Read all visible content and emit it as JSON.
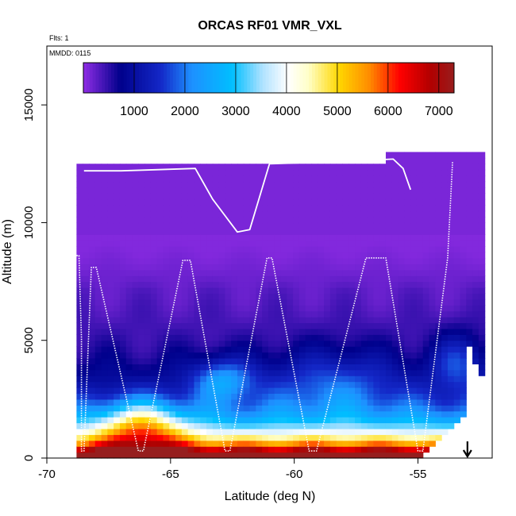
{
  "chart_data": {
    "type": "heatmap",
    "title": "ORCAS RF01 VMR_VXL",
    "flights_label": "Flts: 1",
    "date_label": "MMDD: 0115",
    "xlabel": "Latitude (deg N)",
    "ylabel": "Altitude (m)",
    "xlim": [
      -70,
      -52
    ],
    "ylim": [
      0,
      17500
    ],
    "x_ticks": [
      -70,
      -65,
      -60,
      -55
    ],
    "x_tick_labels": [
      "-70",
      "-65",
      "-60",
      "-55"
    ],
    "y_ticks": [
      0,
      5000,
      10000,
      15000
    ],
    "y_tick_labels": [
      "0",
      "5000",
      "10000",
      "15000"
    ],
    "colorbar": {
      "min": 0,
      "max": 7300,
      "ticks": [
        1000,
        2000,
        3000,
        4000,
        5000,
        6000,
        7000
      ],
      "tick_labels": [
        "1000",
        "2000",
        "3000",
        "4000",
        "5000",
        "6000",
        "7000"
      ],
      "colors": [
        "#8a2be2",
        "#00008b",
        "#1e90ff",
        "#00bfff",
        "#ffffff",
        "#ffffe0",
        "#ffd700",
        "#ffa500",
        "#ff0000",
        "#8b0000",
        "#a52a2a"
      ]
    },
    "grid": {
      "lat_min": -68.8,
      "lat_max": -52.5,
      "lat_step": 0.25,
      "alt_min": 0,
      "alt_max": 12800,
      "alt_step": 250
    },
    "flight_track": [
      [
        -68.8,
        8600
      ],
      [
        -68.7,
        8600
      ],
      [
        -68.6,
        5100
      ],
      [
        -68.6,
        300
      ],
      [
        -68.5,
        300
      ],
      [
        -68.2,
        8100
      ],
      [
        -68.0,
        8100
      ],
      [
        -66.3,
        300
      ],
      [
        -66.1,
        300
      ],
      [
        -64.5,
        8400
      ],
      [
        -64.2,
        8400
      ],
      [
        -62.8,
        300
      ],
      [
        -62.6,
        300
      ],
      [
        -61.1,
        8500
      ],
      [
        -60.9,
        8500
      ],
      [
        -59.4,
        300
      ],
      [
        -59.1,
        300
      ],
      [
        -57.1,
        8500
      ],
      [
        -56.3,
        8500
      ],
      [
        -55.0,
        300
      ],
      [
        -54.8,
        300
      ],
      [
        -53.8,
        8500
      ],
      [
        -53.6,
        12600
      ]
    ],
    "high_track": [
      [
        -68.5,
        12200
      ],
      [
        -67.0,
        12200
      ],
      [
        -64.0,
        12300
      ],
      [
        -63.3,
        11000
      ],
      [
        -62.3,
        9600
      ],
      [
        -61.8,
        9700
      ],
      [
        -61.0,
        12500
      ],
      [
        -58.0,
        12600
      ],
      [
        -56.0,
        12700
      ],
      [
        -55.6,
        12300
      ],
      [
        -55.3,
        11400
      ]
    ],
    "arrow_lat": -53.0
  }
}
